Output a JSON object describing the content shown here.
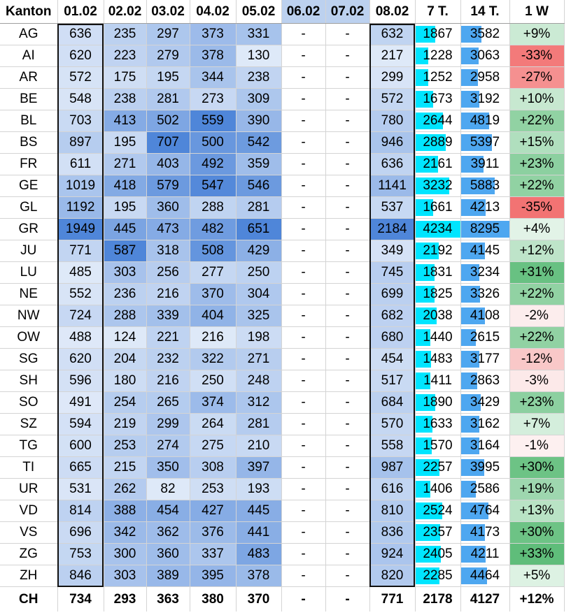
{
  "headers": [
    "Kanton",
    "01.02",
    "02.02",
    "03.02",
    "04.02",
    "05.02",
    "06.02",
    "07.02",
    "08.02",
    "7 T.",
    "14 T.",
    "1 W"
  ],
  "dim_header_indexes": [
    6,
    7
  ],
  "rows": [
    {
      "kanton": "AG",
      "days": [
        636,
        235,
        297,
        373,
        331,
        "-",
        "-",
        632
      ],
      "t7": 1867,
      "t14": 3582,
      "w1": "+9%",
      "w1_value": 9
    },
    {
      "kanton": "AI",
      "days": [
        620,
        223,
        279,
        378,
        130,
        "-",
        "-",
        217
      ],
      "t7": 1228,
      "t14": 3063,
      "w1": "-33%",
      "w1_value": -33
    },
    {
      "kanton": "AR",
      "days": [
        572,
        175,
        195,
        344,
        238,
        "-",
        "-",
        299
      ],
      "t7": 1252,
      "t14": 2958,
      "w1": "-27%",
      "w1_value": -27
    },
    {
      "kanton": "BE",
      "days": [
        548,
        238,
        281,
        273,
        309,
        "-",
        "-",
        572
      ],
      "t7": 1673,
      "t14": 3192,
      "w1": "+10%",
      "w1_value": 10
    },
    {
      "kanton": "BL",
      "days": [
        703,
        413,
        502,
        559,
        390,
        "-",
        "-",
        780
      ],
      "t7": 2644,
      "t14": 4819,
      "w1": "+22%",
      "w1_value": 22
    },
    {
      "kanton": "BS",
      "days": [
        897,
        195,
        707,
        500,
        542,
        "-",
        "-",
        946
      ],
      "t7": 2889,
      "t14": 5397,
      "w1": "+15%",
      "w1_value": 15
    },
    {
      "kanton": "FR",
      "days": [
        611,
        271,
        403,
        492,
        359,
        "-",
        "-",
        636
      ],
      "t7": 2161,
      "t14": 3911,
      "w1": "+23%",
      "w1_value": 23
    },
    {
      "kanton": "GE",
      "days": [
        1019,
        418,
        579,
        547,
        546,
        "-",
        "-",
        1141
      ],
      "t7": 3232,
      "t14": 5883,
      "w1": "+22%",
      "w1_value": 22
    },
    {
      "kanton": "GL",
      "days": [
        1192,
        195,
        360,
        288,
        281,
        "-",
        "-",
        537
      ],
      "t7": 1661,
      "t14": 4213,
      "w1": "-35%",
      "w1_value": -35
    },
    {
      "kanton": "GR",
      "days": [
        1949,
        445,
        473,
        482,
        651,
        "-",
        "-",
        2184
      ],
      "t7": 4234,
      "t14": 8295,
      "w1": "+4%",
      "w1_value": 4
    },
    {
      "kanton": "JU",
      "days": [
        771,
        587,
        318,
        508,
        429,
        "-",
        "-",
        349
      ],
      "t7": 2192,
      "t14": 4145,
      "w1": "+12%",
      "w1_value": 12
    },
    {
      "kanton": "LU",
      "days": [
        485,
        303,
        256,
        277,
        250,
        "-",
        "-",
        745
      ],
      "t7": 1831,
      "t14": 3234,
      "w1": "+31%",
      "w1_value": 31
    },
    {
      "kanton": "NE",
      "days": [
        552,
        236,
        216,
        370,
        304,
        "-",
        "-",
        699
      ],
      "t7": 1825,
      "t14": 3326,
      "w1": "+22%",
      "w1_value": 22
    },
    {
      "kanton": "NW",
      "days": [
        724,
        288,
        339,
        404,
        325,
        "-",
        "-",
        682
      ],
      "t7": 2038,
      "t14": 4108,
      "w1": "-2%",
      "w1_value": -2
    },
    {
      "kanton": "OW",
      "days": [
        488,
        124,
        221,
        216,
        198,
        "-",
        "-",
        680
      ],
      "t7": 1440,
      "t14": 2615,
      "w1": "+22%",
      "w1_value": 22
    },
    {
      "kanton": "SG",
      "days": [
        620,
        204,
        232,
        322,
        271,
        "-",
        "-",
        454
      ],
      "t7": 1483,
      "t14": 3177,
      "w1": "-12%",
      "w1_value": -12
    },
    {
      "kanton": "SH",
      "days": [
        596,
        180,
        216,
        250,
        248,
        "-",
        "-",
        517
      ],
      "t7": 1411,
      "t14": 2863,
      "w1": "-3%",
      "w1_value": -3
    },
    {
      "kanton": "SO",
      "days": [
        491,
        254,
        265,
        374,
        312,
        "-",
        "-",
        684
      ],
      "t7": 1890,
      "t14": 3429,
      "w1": "+23%",
      "w1_value": 23
    },
    {
      "kanton": "SZ",
      "days": [
        594,
        219,
        299,
        264,
        281,
        "-",
        "-",
        570
      ],
      "t7": 1633,
      "t14": 3162,
      "w1": "+7%",
      "w1_value": 7
    },
    {
      "kanton": "TG",
      "days": [
        600,
        253,
        274,
        275,
        210,
        "-",
        "-",
        558
      ],
      "t7": 1570,
      "t14": 3164,
      "w1": "-1%",
      "w1_value": -1
    },
    {
      "kanton": "TI",
      "days": [
        665,
        215,
        350,
        308,
        397,
        "-",
        "-",
        987
      ],
      "t7": 2257,
      "t14": 3995,
      "w1": "+30%",
      "w1_value": 30
    },
    {
      "kanton": "UR",
      "days": [
        531,
        262,
        82,
        253,
        193,
        "-",
        "-",
        616
      ],
      "t7": 1406,
      "t14": 2586,
      "w1": "+19%",
      "w1_value": 19
    },
    {
      "kanton": "VD",
      "days": [
        814,
        388,
        454,
        427,
        445,
        "-",
        "-",
        810
      ],
      "t7": 2524,
      "t14": 4764,
      "w1": "+13%",
      "w1_value": 13
    },
    {
      "kanton": "VS",
      "days": [
        696,
        342,
        362,
        376,
        441,
        "-",
        "-",
        836
      ],
      "t7": 2357,
      "t14": 4173,
      "w1": "+30%",
      "w1_value": 30
    },
    {
      "kanton": "ZG",
      "days": [
        753,
        300,
        360,
        337,
        483,
        "-",
        "-",
        924
      ],
      "t7": 2405,
      "t14": 4211,
      "w1": "+33%",
      "w1_value": 33
    },
    {
      "kanton": "ZH",
      "days": [
        846,
        303,
        389,
        395,
        378,
        "-",
        "-",
        820
      ],
      "t7": 2285,
      "t14": 4464,
      "w1": "+5%",
      "w1_value": 5
    }
  ],
  "total": {
    "kanton": "CH",
    "days": [
      734,
      293,
      363,
      380,
      370,
      "-",
      "-",
      771
    ],
    "t7": 2178,
    "t14": 4127,
    "w1": "+12%"
  },
  "colors": {
    "heat_low": "#f2f6fc",
    "heat_high": "#4f86d9",
    "bar_t7": "#00e5ff",
    "bar_t14": "#4ea7f0",
    "pos_strong": "#5fbd7a",
    "pos_light": "#e4f3e8",
    "neg_strong": "#f27373",
    "neg_light": "#fbeeee",
    "outline": "#111111"
  }
}
